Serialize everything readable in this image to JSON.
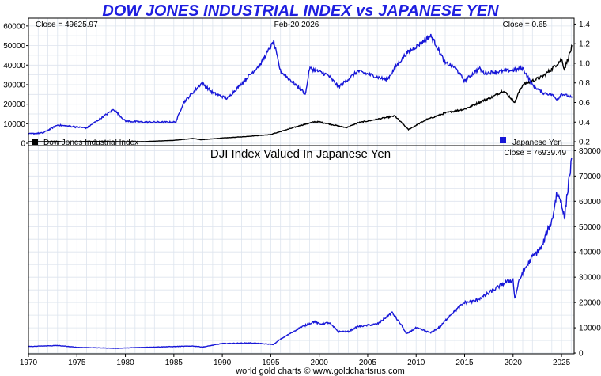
{
  "title": "DOW JONES INDUSTRIAL INDEX vs JAPANESE YEN",
  "footer": "world gold charts © www.goldchartsrus.com",
  "colors": {
    "title": "#1f1fe0",
    "dji": "#000000",
    "yen": "#1717d8",
    "grid": "#dde4ee",
    "frame": "#000000"
  },
  "chart_data": [
    {
      "type": "line",
      "panel": "top",
      "date_label": "Feb-20  2026",
      "left_close": "Close = 49625.97",
      "right_close": "Close = 0.65",
      "legend": [
        {
          "name": "Dow Jones Industrial Index",
          "color": "#000000",
          "position": "bottom-left"
        },
        {
          "name": "Japanese Yen",
          "color": "#1717d8",
          "position": "bottom-right"
        }
      ],
      "x": {
        "range": [
          1970,
          2026.3
        ],
        "ticks": [
          "1970",
          "1975",
          "1980",
          "1985",
          "1990",
          "1995",
          "2000",
          "2005",
          "2010",
          "2015",
          "2020",
          "2025"
        ]
      },
      "y_left": {
        "range": [
          -1200,
          64000
        ],
        "ticks": [
          "0",
          "10000",
          "20000",
          "30000",
          "40000",
          "50000",
          "60000"
        ]
      },
      "y_right": {
        "range": [
          0.16,
          1.46
        ],
        "ticks": [
          "0.2",
          "0.4",
          "0.6",
          "0.8",
          "1.0",
          "1.2",
          "1.4"
        ]
      },
      "series": [
        {
          "name": "Dow Jones Industrial Index",
          "axis": "left",
          "x": [
            1970,
            1972,
            1973,
            1974,
            1976,
            1980,
            1982,
            1985,
            1987,
            1987.8,
            1990,
            1992,
            1995,
            1997,
            1998,
            1999.5,
            2000,
            2002.8,
            2004,
            2007.8,
            2009.2,
            2011,
            2013,
            2015,
            2017,
            2018,
            2019,
            2020.2,
            2020.5,
            2021,
            2022,
            2023,
            2024,
            2025,
            2025.3,
            2026.1
          ],
          "values": [
            800,
            900,
            1000,
            600,
            1000,
            850,
            900,
            1500,
            2500,
            1800,
            2700,
            3300,
            4500,
            7500,
            9000,
            11000,
            11000,
            8000,
            10500,
            14000,
            7000,
            12000,
            15500,
            17500,
            22000,
            24000,
            27000,
            21000,
            25000,
            30000,
            32000,
            34000,
            38000,
            43000,
            38000,
            49626
          ]
        },
        {
          "name": "Japanese Yen",
          "axis": "right",
          "x": [
            1970,
            1971.5,
            1973,
            1976,
            1978.8,
            1980,
            1982,
            1985.2,
            1986,
            1987.9,
            1989,
            1990.5,
            1994,
            1995.3,
            1996,
            1998.6,
            1999,
            2000.9,
            2002,
            2004,
            2007,
            2008,
            2009,
            2011.5,
            2012,
            2013,
            2014,
            2015,
            2016.5,
            2017,
            2019,
            2020,
            2021,
            2022,
            2023,
            2024,
            2024.6,
            2025,
            2026.1
          ],
          "values": [
            0.28,
            0.29,
            0.37,
            0.34,
            0.53,
            0.41,
            0.4,
            0.4,
            0.6,
            0.8,
            0.7,
            0.64,
            1.0,
            1.22,
            0.92,
            0.69,
            0.95,
            0.88,
            0.76,
            0.92,
            0.83,
            0.98,
            1.1,
            1.28,
            1.2,
            1.0,
            0.96,
            0.82,
            0.95,
            0.9,
            0.92,
            0.93,
            0.95,
            0.78,
            0.7,
            0.68,
            0.63,
            0.69,
            0.65
          ]
        }
      ]
    },
    {
      "type": "line",
      "panel": "bottom",
      "title": "DJI Index Valued In Japanese Yen",
      "right_close": "Close = 76939.49",
      "x": {
        "range": [
          1970,
          2026.3
        ],
        "ticks": [
          "1970",
          "1975",
          "1980",
          "1985",
          "1990",
          "1995",
          "2000",
          "2005",
          "2010",
          "2015",
          "2020",
          "2025"
        ]
      },
      "y_right": {
        "range": [
          -300,
          82000
        ],
        "ticks": [
          "0",
          "10000",
          "20000",
          "30000",
          "40000",
          "50000",
          "60000",
          "70000",
          "80000"
        ]
      },
      "series": [
        {
          "name": "DJI in Japanese Yen",
          "axis": "right",
          "x": [
            1970,
            1973,
            1975,
            1979,
            1982,
            1985,
            1987,
            1988,
            1990,
            1993,
            1995.3,
            1996,
            1998,
            1999.5,
            2000,
            2001,
            2002,
            2003,
            2004,
            2006,
            2007.5,
            2008.5,
            2009,
            2010,
            2011.5,
            2012.5,
            2013.5,
            2015,
            2016,
            2017,
            2018,
            2019,
            2020,
            2020.2,
            2020.5,
            2021,
            2022,
            2023,
            2023.5,
            2024,
            2024.5,
            2025,
            2025.3,
            2025.8,
            2026.1
          ],
          "values": [
            2600,
            3000,
            2300,
            1900,
            2300,
            2600,
            2800,
            2400,
            3800,
            4000,
            3400,
            5500,
            10000,
            12500,
            11500,
            12000,
            8500,
            8500,
            10500,
            11500,
            16000,
            11000,
            7500,
            10000,
            8000,
            10500,
            15000,
            20000,
            20500,
            22500,
            25000,
            27500,
            29000,
            21000,
            27000,
            32000,
            38000,
            42000,
            48000,
            52000,
            63000,
            60000,
            53000,
            70000,
            76939
          ]
        }
      ]
    }
  ]
}
